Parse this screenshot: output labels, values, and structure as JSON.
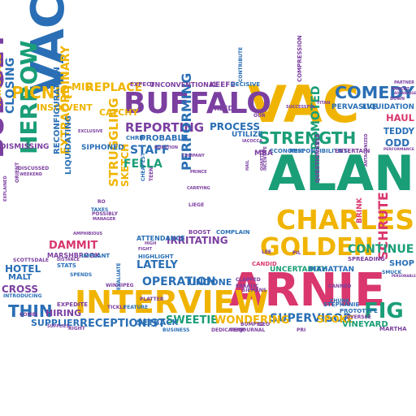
{
  "palette": {
    "yellow": "#f0b400",
    "green": "#1a9e77",
    "purple": "#7b3fa0",
    "blue": "#2a6fb5",
    "red": "#d9376e"
  },
  "words": [
    {
      "text": "VACUUM",
      "color": "blue"
    },
    {
      "text": "ALAN",
      "color": "green"
    },
    {
      "text": "VAC",
      "color": "yellow"
    },
    {
      "text": "ARNIE",
      "color": "red"
    },
    {
      "text": "INTERVIEW",
      "color": "yellow"
    },
    {
      "text": "BUFFALO",
      "color": "purple"
    },
    {
      "text": "CHARLES",
      "color": "yellow"
    },
    {
      "text": "BUDGET",
      "color": "purple"
    },
    {
      "text": "HERROW",
      "color": "green"
    },
    {
      "text": "GOLDEN",
      "color": "yellow"
    },
    {
      "text": "STRENGTH",
      "color": "green"
    },
    {
      "text": "COMEDY",
      "color": "blue"
    },
    {
      "text": "PICNIC",
      "color": "yellow"
    },
    {
      "text": "REPLACE",
      "color": "yellow"
    },
    {
      "text": "MID",
      "color": "yellow"
    },
    {
      "text": "REPORTING",
      "color": "purple"
    },
    {
      "text": "PROCESS",
      "color": "blue"
    },
    {
      "text": "PROMOTED",
      "color": "green"
    },
    {
      "text": "FIG",
      "color": "green"
    },
    {
      "text": "SCHRUTE",
      "color": "red"
    },
    {
      "text": "THIN",
      "color": "blue"
    },
    {
      "text": "OPERATION",
      "color": "blue"
    },
    {
      "text": "SUPERVISOR",
      "color": "blue"
    },
    {
      "text": "CONTINUE",
      "color": "green"
    },
    {
      "text": "PERFORMING",
      "color": "blue"
    },
    {
      "text": "STRUGGLING",
      "color": "yellow"
    },
    {
      "text": "SKETCH",
      "color": "yellow"
    },
    {
      "text": "FELLA",
      "color": "green"
    },
    {
      "text": "STAFF",
      "color": "blue"
    },
    {
      "text": "IRRITATING",
      "color": "purple"
    },
    {
      "text": "LATELY",
      "color": "blue"
    },
    {
      "text": "UNDONE",
      "color": "blue"
    },
    {
      "text": "SWEETIE",
      "color": "green"
    },
    {
      "text": "WONDERING",
      "color": "yellow"
    },
    {
      "text": "RECEPTIONIST",
      "color": "blue"
    },
    {
      "text": "SETBACK",
      "color": "blue"
    },
    {
      "text": "SPOKE",
      "color": "yellow"
    },
    {
      "text": "VINEYARD",
      "color": "green"
    },
    {
      "text": "CLOSING",
      "color": "blue"
    },
    {
      "text": "DAMMIT",
      "color": "red"
    },
    {
      "text": "HOTEL",
      "color": "blue"
    },
    {
      "text": "CROSS",
      "color": "purple"
    },
    {
      "text": "HIRING",
      "color": "purple"
    },
    {
      "text": "SUPPLIER",
      "color": "blue"
    },
    {
      "text": "HAUL",
      "color": "red"
    },
    {
      "text": "TEDDY",
      "color": "blue"
    },
    {
      "text": "ODD",
      "color": "blue"
    },
    {
      "text": "SHOP",
      "color": "blue"
    },
    {
      "text": "INSOLVENT",
      "color": "yellow"
    },
    {
      "text": "CATCHY",
      "color": "yellow"
    },
    {
      "text": "SIPHONED",
      "color": "blue"
    },
    {
      "text": "EXTRAORDINARY",
      "color": "yellow"
    },
    {
      "text": "RECONFIGURATION",
      "color": "blue"
    },
    {
      "text": "UNCONVENTIONAL",
      "color": "purple"
    },
    {
      "text": "PERVASIVE",
      "color": "blue"
    },
    {
      "text": "LIQUIDATION",
      "color": "blue"
    },
    {
      "text": "MALT",
      "color": "blue"
    },
    {
      "text": "DRUMSTICK",
      "color": "green"
    },
    {
      "text": "DISTRIBUTE",
      "color": "yellow"
    },
    {
      "text": "ANNOUNCE",
      "color": "yellow"
    },
    {
      "text": "DISMISSING",
      "color": "purple"
    },
    {
      "text": "UNCERTAINTY",
      "color": "green"
    },
    {
      "text": "MAHATTAN",
      "color": "blue"
    },
    {
      "text": "LIQUIDATING",
      "color": "blue"
    },
    {
      "text": "ATTENDANCE",
      "color": "blue"
    },
    {
      "text": "MARSHBROOK",
      "color": "purple"
    },
    {
      "text": "PROBABLE",
      "color": "blue"
    },
    {
      "text": "KEEFE",
      "color": "purple"
    },
    {
      "text": "EXPECT",
      "color": "purple"
    },
    {
      "text": "UTILIZE",
      "color": "blue"
    },
    {
      "text": "FREED",
      "color": "purple"
    },
    {
      "text": "DECISIVE",
      "color": "blue"
    },
    {
      "text": "ECONOMIC",
      "color": "blue"
    },
    {
      "text": "RESPONSIBILITIES",
      "color": "blue"
    },
    {
      "text": "ENTERTAIN",
      "color": "purple"
    },
    {
      "text": "PERFORMANCE",
      "color": "purple"
    },
    {
      "text": "MBA",
      "color": "purple"
    },
    {
      "text": "EXPEDITE",
      "color": "purple"
    },
    {
      "text": "STATS",
      "color": "blue"
    },
    {
      "text": "IMPLANT",
      "color": "blue"
    },
    {
      "text": "STEPHANIE",
      "color": "blue"
    },
    {
      "text": "PROTOTYPE",
      "color": "blue"
    },
    {
      "text": "OVERSEE",
      "color": "purple"
    },
    {
      "text": "MARTHA",
      "color": "purple"
    },
    {
      "text": "PERSONABLE",
      "color": "purple"
    },
    {
      "text": "SPREADING",
      "color": "purple"
    },
    {
      "text": "CANDID",
      "color": "red"
    },
    {
      "text": "HIGHLIGHT",
      "color": "blue"
    },
    {
      "text": "WINNIPEG",
      "color": "purple"
    },
    {
      "text": "EVALUATE",
      "color": "blue"
    },
    {
      "text": "BOOST",
      "color": "purple"
    },
    {
      "text": "COMPLAIN",
      "color": "blue"
    },
    {
      "text": "PLATTER",
      "color": "purple"
    },
    {
      "text": "TICKLE",
      "color": "purple"
    },
    {
      "text": "FEATURE",
      "color": "blue"
    },
    {
      "text": "QUESTIONABLE",
      "color": "purple"
    },
    {
      "text": "BRINK",
      "color": "red"
    },
    {
      "text": "COMPRESSION",
      "color": "purple"
    },
    {
      "text": "CHRIS",
      "color": "blue"
    },
    {
      "text": "POSSIBLY",
      "color": "purple"
    },
    {
      "text": "TAXES",
      "color": "blue"
    },
    {
      "text": "CANNED",
      "color": "purple"
    },
    {
      "text": "CHUNK",
      "color": "blue"
    },
    {
      "text": "SCOTTSDALE",
      "color": "purple"
    },
    {
      "text": "CONTRIBUTE",
      "color": "blue"
    },
    {
      "text": "SPENDS",
      "color": "blue"
    },
    {
      "text": "RIGHT",
      "color": "purple"
    },
    {
      "text": "INTRODUCING",
      "color": "blue"
    },
    {
      "text": "EXCLUSIVE",
      "color": "purple"
    },
    {
      "text": "CHEAPEST",
      "color": "blue"
    },
    {
      "text": "TEEN",
      "color": "purple"
    },
    {
      "text": "ERRATIC",
      "color": "purple"
    },
    {
      "text": "CLAPPED",
      "color": "purple"
    },
    {
      "text": "SMUCK",
      "color": "blue"
    },
    {
      "text": "LIEGE",
      "color": "purple"
    },
    {
      "text": "GEO",
      "color": "purple"
    },
    {
      "text": "BUMPED",
      "color": "purple"
    },
    {
      "text": "TEMP",
      "color": "purple"
    },
    {
      "text": "JOURNAL",
      "color": "purple"
    },
    {
      "text": "PRI",
      "color": "purple"
    },
    {
      "text": "BUSINESS",
      "color": "blue"
    },
    {
      "text": "DEDICATED",
      "color": "purple"
    },
    {
      "text": "RO",
      "color": "purple"
    },
    {
      "text": "LEE",
      "color": "purple"
    },
    {
      "text": "OUR",
      "color": "purple"
    },
    {
      "text": "PIL",
      "color": "purple"
    },
    {
      "text": "SIEMENS",
      "color": "purple"
    },
    {
      "text": "COMBI",
      "color": "purple"
    },
    {
      "text": "AMPHIBIOUS",
      "color": "purple"
    },
    {
      "text": "SUPPLIES",
      "color": "purple"
    },
    {
      "text": "MANAGER",
      "color": "purple"
    },
    {
      "text": "INCENTIVE",
      "color": "purple"
    },
    {
      "text": "ANTAGONIZED",
      "color": "purple"
    },
    {
      "text": "COMPANY",
      "color": "purple"
    },
    {
      "text": "CARRYING",
      "color": "purple"
    },
    {
      "text": "PRINCE",
      "color": "purple"
    },
    {
      "text": "QUESTION",
      "color": "purple"
    },
    {
      "text": "FIGHT",
      "color": "purple"
    },
    {
      "text": "HIGH",
      "color": "purple"
    },
    {
      "text": "DISTANCE",
      "color": "purple"
    },
    {
      "text": "DISCUSSED",
      "color": "purple"
    },
    {
      "text": "WEEKEND",
      "color": "purple"
    },
    {
      "text": "ORIENT",
      "color": "purple"
    },
    {
      "text": "IACOCCA",
      "color": "purple"
    },
    {
      "text": "QUARTER",
      "color": "purple"
    },
    {
      "text": "TITAN",
      "color": "purple"
    },
    {
      "text": "SUCCESSFUL",
      "color": "purple"
    },
    {
      "text": "DOWN",
      "color": "purple"
    },
    {
      "text": "EXPLAINED",
      "color": "purple"
    },
    {
      "text": "HAIL",
      "color": "purple"
    },
    {
      "text": "PARTNER",
      "color": "purple"
    },
    {
      "text": "PARENT",
      "color": "purple"
    },
    {
      "text": "ADVANTAGE",
      "color": "purple"
    }
  ]
}
